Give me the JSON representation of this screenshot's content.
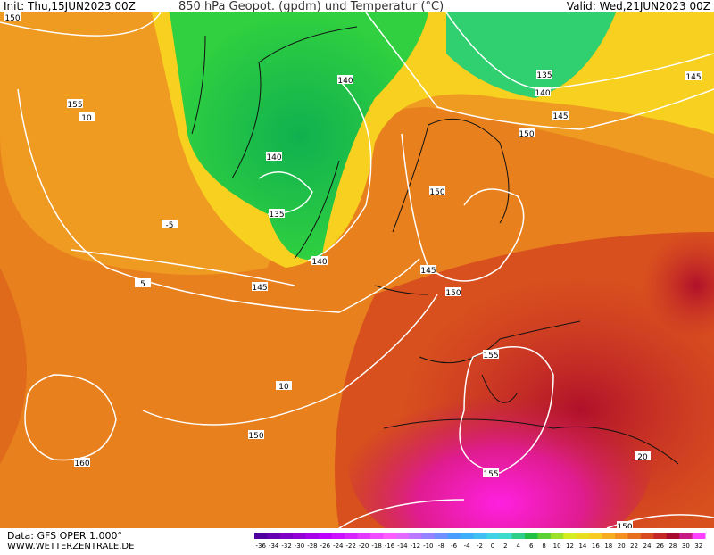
{
  "header": {
    "init": "Init: Thu,15JUN2023 00Z",
    "title": "850 hPa Geopot. (gpdm) und Temperatur (°C)",
    "valid": "Valid: Wed,21JUN2023 00Z"
  },
  "footer": {
    "data": "Data: GFS OPER 1.000°",
    "site": "WWW.WETTERZENTRALE.DE"
  },
  "scale": {
    "labels": [
      -36,
      -34,
      -32,
      -30,
      -28,
      -26,
      -24,
      -22,
      -20,
      -18,
      -16,
      -14,
      -12,
      -10,
      -8,
      -6,
      -4,
      -2,
      0,
      2,
      4,
      6,
      8,
      10,
      12,
      14,
      16,
      18,
      20,
      22,
      24,
      26,
      28,
      30,
      32
    ]
  },
  "contour_labels": [
    "150",
    "155",
    "10",
    "140",
    "140",
    "135",
    "140",
    "145",
    "150",
    "135",
    "140",
    "145",
    "150",
    "145",
    "150",
    "155",
    "155",
    "150",
    "160",
    "-5",
    "5",
    "10",
    "20",
    "145",
    "150"
  ]
}
